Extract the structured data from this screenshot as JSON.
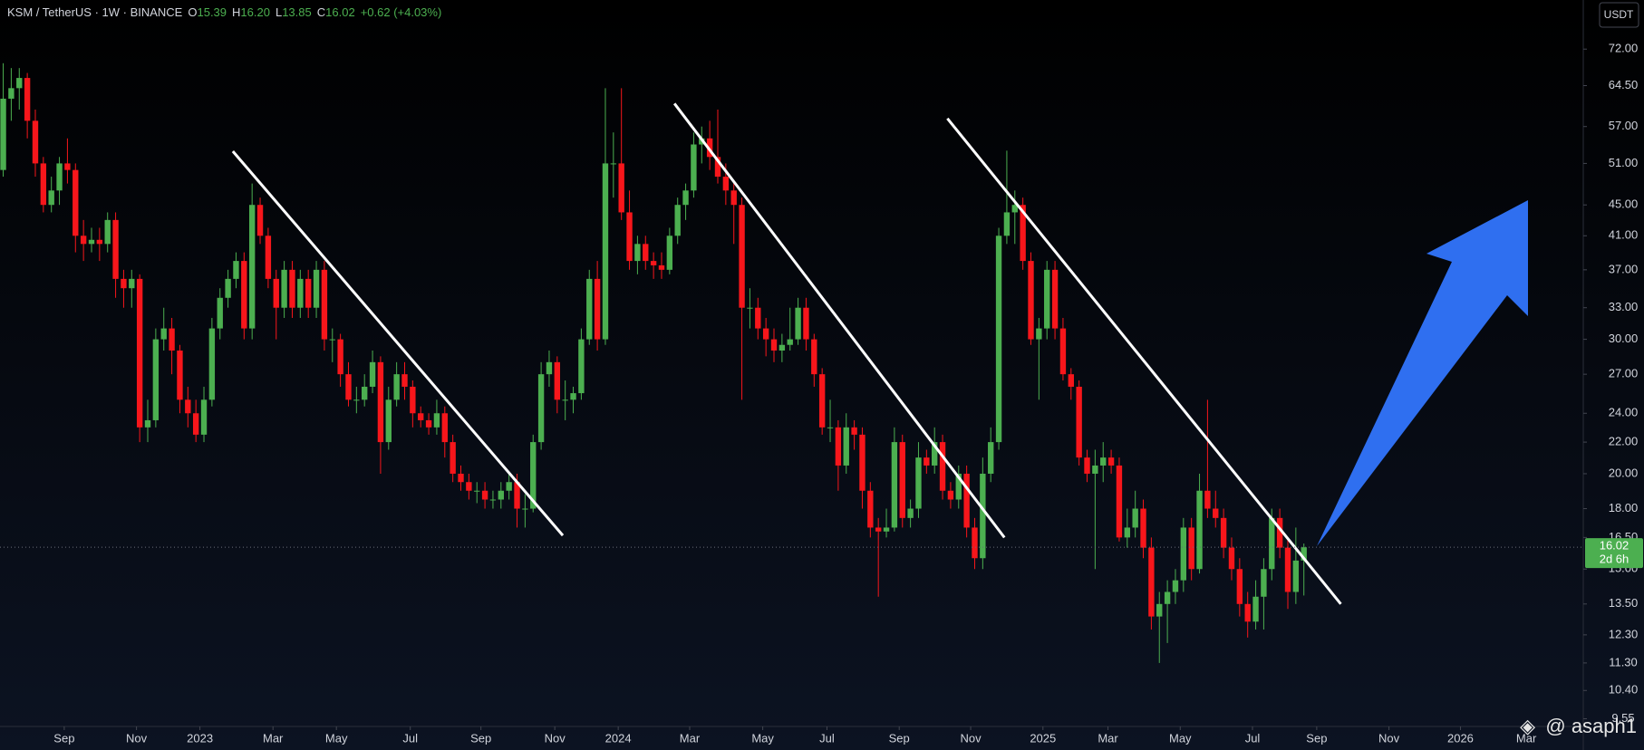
{
  "header": {
    "title": "KSM / TetherUS · 1W · BINANCE",
    "fields": [
      {
        "key": "O",
        "value": "15.39"
      },
      {
        "key": "H",
        "value": "16.20"
      },
      {
        "key": "L",
        "value": "13.85"
      },
      {
        "key": "C",
        "value": "16.02"
      }
    ],
    "change": "+0.62 (+4.03%)"
  },
  "currency": "USDT",
  "countdown": "2d 6h",
  "watermark": "@ asaph1",
  "chart_data": {
    "type": "candlestick",
    "log_scale": true,
    "up_color": "#4caf50",
    "down_color": "#f7161b",
    "trendline_color": "#ffffff",
    "xlim": [
      -0.4,
      196.8
    ],
    "ylim": [
      9.33,
      83.5
    ],
    "xticks": [
      {
        "value": 7.6,
        "label": "Sep"
      },
      {
        "value": 16.6,
        "label": "Nov"
      },
      {
        "value": 24.5,
        "label": "2023"
      },
      {
        "value": 33.6,
        "label": "Mar"
      },
      {
        "value": 41.5,
        "label": "May"
      },
      {
        "value": 50.7,
        "label": "Jul"
      },
      {
        "value": 59.5,
        "label": "Sep"
      },
      {
        "value": 68.7,
        "label": "Nov"
      },
      {
        "value": 76.6,
        "label": "2024"
      },
      {
        "value": 85.5,
        "label": "Mar"
      },
      {
        "value": 94.6,
        "label": "May"
      },
      {
        "value": 102.6,
        "label": "Jul"
      },
      {
        "value": 111.6,
        "label": "Sep"
      },
      {
        "value": 120.5,
        "label": "Nov"
      },
      {
        "value": 129.5,
        "label": "2025"
      },
      {
        "value": 137.6,
        "label": "Mar"
      },
      {
        "value": 146.6,
        "label": "May"
      },
      {
        "value": 155.6,
        "label": "Jul"
      },
      {
        "value": 163.6,
        "label": "Sep"
      },
      {
        "value": 172.6,
        "label": "Nov"
      },
      {
        "value": 181.5,
        "label": "2026"
      },
      {
        "value": 189.7,
        "label": "Mar"
      }
    ],
    "yticks": [
      {
        "value": 72,
        "label": "72.00"
      },
      {
        "value": 64.5,
        "label": "64.50"
      },
      {
        "value": 57,
        "label": "57.00"
      },
      {
        "value": 51,
        "label": "51.00"
      },
      {
        "value": 45,
        "label": "45.00"
      },
      {
        "value": 41,
        "label": "41.00"
      },
      {
        "value": 37,
        "label": "37.00"
      },
      {
        "value": 33,
        "label": "33.00"
      },
      {
        "value": 30,
        "label": "30.00"
      },
      {
        "value": 27,
        "label": "27.00"
      },
      {
        "value": 24,
        "label": "24.00"
      },
      {
        "value": 22,
        "label": "22.00"
      },
      {
        "value": 20,
        "label": "20.00"
      },
      {
        "value": 18,
        "label": "18.00"
      },
      {
        "value": 16.5,
        "label": "16.50"
      },
      {
        "value": 15,
        "label": "15.00"
      },
      {
        "value": 13.5,
        "label": "13.50"
      },
      {
        "value": 12.3,
        "label": "12.30"
      },
      {
        "value": 11.3,
        "label": "11.30"
      },
      {
        "value": 10.4,
        "label": "10.40"
      },
      {
        "value": 9.55,
        "label": "9.55"
      }
    ],
    "trendlines": [
      {
        "x": [
          28.6,
          69.7
        ],
        "y": [
          52.9,
          16.6
        ]
      },
      {
        "x": [
          83.6,
          124.7
        ],
        "y": [
          61.1,
          16.5
        ]
      },
      {
        "x": [
          117.6,
          166.6
        ],
        "y": [
          58.4,
          13.5
        ]
      }
    ],
    "candles": [
      [
        50,
        69,
        49,
        62
      ],
      [
        62,
        68,
        58,
        64
      ],
      [
        64,
        68,
        60,
        66
      ],
      [
        66,
        67,
        55,
        58
      ],
      [
        58,
        60,
        49,
        51
      ],
      [
        51,
        52,
        44,
        45
      ],
      [
        45,
        49,
        44,
        47
      ],
      [
        47,
        52,
        45,
        51
      ],
      [
        51,
        55,
        48,
        50
      ],
      [
        50,
        51,
        39,
        41
      ],
      [
        41,
        43,
        38,
        40
      ],
      [
        40,
        42,
        39,
        40.5
      ],
      [
        40.5,
        42,
        38,
        40
      ],
      [
        40,
        44,
        39,
        43
      ],
      [
        43,
        44,
        34,
        36
      ],
      [
        36,
        37,
        33,
        35
      ],
      [
        35,
        37,
        33,
        36
      ],
      [
        36,
        36.5,
        22,
        23
      ],
      [
        23,
        25,
        22,
        23.5
      ],
      [
        23.5,
        31,
        23,
        30
      ],
      [
        30,
        33,
        29,
        31
      ],
      [
        31,
        32,
        27,
        29
      ],
      [
        29,
        29.5,
        24,
        25
      ],
      [
        25,
        26,
        23,
        24
      ],
      [
        24,
        25,
        22,
        22.5
      ],
      [
        22.5,
        26,
        22,
        25
      ],
      [
        25,
        32,
        24.5,
        31
      ],
      [
        31,
        35,
        30,
        34
      ],
      [
        34,
        37,
        33,
        36
      ],
      [
        36,
        39,
        35,
        38
      ],
      [
        38,
        39,
        30,
        31
      ],
      [
        31,
        48,
        30,
        45
      ],
      [
        45,
        46,
        40,
        41
      ],
      [
        41,
        42,
        35,
        36
      ],
      [
        36,
        37,
        30,
        33
      ],
      [
        33,
        38,
        32,
        37
      ],
      [
        37,
        38,
        32,
        33
      ],
      [
        33,
        37,
        32,
        36
      ],
      [
        36,
        37,
        32,
        33
      ],
      [
        33,
        38,
        32,
        37
      ],
      [
        37,
        38,
        29,
        30
      ],
      [
        30,
        31,
        28,
        30
      ],
      [
        30,
        30.5,
        26,
        27
      ],
      [
        27,
        28,
        24.5,
        25
      ],
      [
        25,
        26,
        24,
        25
      ],
      [
        25,
        27,
        24.5,
        26
      ],
      [
        26,
        29,
        25.5,
        28
      ],
      [
        28,
        28.5,
        20,
        22
      ],
      [
        22,
        26,
        21.5,
        25
      ],
      [
        25,
        28,
        24.5,
        27
      ],
      [
        27,
        28,
        25,
        26
      ],
      [
        26,
        26.5,
        23,
        24
      ],
      [
        24,
        24.5,
        23,
        23.5
      ],
      [
        23.5,
        24,
        22.5,
        23
      ],
      [
        23,
        25,
        22.5,
        24
      ],
      [
        24,
        24.5,
        21,
        22
      ],
      [
        22,
        22.5,
        19.5,
        20
      ],
      [
        20,
        20.5,
        19,
        19.5
      ],
      [
        19.5,
        20,
        18.5,
        19
      ],
      [
        19,
        19.5,
        18.3,
        19
      ],
      [
        19,
        19.5,
        18,
        18.5
      ],
      [
        18.5,
        19,
        18,
        18.5
      ],
      [
        18.5,
        19.5,
        18,
        19
      ],
      [
        19,
        20,
        18.5,
        19.5
      ],
      [
        19.5,
        20,
        17,
        18
      ],
      [
        18,
        18.8,
        17,
        18
      ],
      [
        18,
        22.5,
        17.8,
        22
      ],
      [
        22,
        28,
        21.5,
        27
      ],
      [
        27,
        29,
        26,
        28
      ],
      [
        28,
        28.5,
        24,
        25
      ],
      [
        25,
        26.5,
        23.5,
        25
      ],
      [
        25,
        26,
        24,
        25.5
      ],
      [
        25.5,
        31,
        25,
        30
      ],
      [
        30,
        37,
        29.5,
        36
      ],
      [
        36,
        38,
        29,
        30
      ],
      [
        30,
        64,
        29.5,
        51
      ],
      [
        51,
        56,
        46,
        51
      ],
      [
        51,
        64,
        43,
        44
      ],
      [
        44,
        47,
        37,
        38
      ],
      [
        38,
        41,
        36.5,
        40
      ],
      [
        40,
        41,
        37,
        38
      ],
      [
        38,
        39,
        36,
        37.5
      ],
      [
        37.5,
        39,
        36,
        37
      ],
      [
        37,
        42,
        36.5,
        41
      ],
      [
        41,
        46,
        40,
        45
      ],
      [
        45,
        48,
        43,
        47
      ],
      [
        47,
        56,
        46,
        54
      ],
      [
        54,
        57,
        51,
        55
      ],
      [
        55,
        58,
        50,
        52
      ],
      [
        52,
        60,
        48,
        49
      ],
      [
        49,
        51,
        45,
        47
      ],
      [
        47,
        48,
        40,
        45
      ],
      [
        45,
        46,
        25,
        33
      ],
      [
        33,
        35,
        31,
        33
      ],
      [
        33,
        34,
        30,
        31
      ],
      [
        31,
        32,
        28.5,
        30
      ],
      [
        30,
        31,
        28,
        29
      ],
      [
        29,
        30.5,
        28,
        29.5
      ],
      [
        29.5,
        33,
        29,
        30
      ],
      [
        30,
        34,
        29.5,
        33
      ],
      [
        33,
        34,
        29,
        30
      ],
      [
        30,
        30.5,
        26,
        27
      ],
      [
        27,
        27.5,
        22.5,
        23
      ],
      [
        23,
        25,
        22,
        23
      ],
      [
        23,
        23.5,
        19,
        20.5
      ],
      [
        20.5,
        24,
        20,
        23
      ],
      [
        23,
        23.5,
        21.5,
        22.5
      ],
      [
        22.5,
        23,
        18,
        19
      ],
      [
        19,
        19.5,
        16.5,
        17
      ],
      [
        17,
        17.5,
        13.8,
        16.8
      ],
      [
        16.8,
        18,
        16.5,
        17
      ],
      [
        17,
        23,
        16.8,
        22
      ],
      [
        22,
        22.5,
        17,
        17.5
      ],
      [
        17.5,
        18.5,
        17,
        18
      ],
      [
        18,
        22,
        17.5,
        21
      ],
      [
        21,
        21.5,
        20,
        20.5
      ],
      [
        20.5,
        23,
        20,
        22
      ],
      [
        22,
        22.5,
        18.5,
        19
      ],
      [
        19,
        19.5,
        18,
        18.5
      ],
      [
        18.5,
        20.5,
        18,
        20
      ],
      [
        20,
        20.5,
        16.5,
        17
      ],
      [
        17,
        17.5,
        15,
        15.5
      ],
      [
        15.5,
        21,
        15,
        20
      ],
      [
        20,
        23,
        19.5,
        22
      ],
      [
        22,
        42,
        21.5,
        41
      ],
      [
        41,
        53,
        40,
        44
      ],
      [
        44,
        47,
        40,
        45
      ],
      [
        45,
        46,
        37,
        38
      ],
      [
        38,
        39,
        29.5,
        30
      ],
      [
        30,
        32,
        25,
        31
      ],
      [
        31,
        38,
        30,
        37
      ],
      [
        37,
        38,
        30,
        31
      ],
      [
        31,
        32,
        26.5,
        27
      ],
      [
        27,
        27.5,
        25,
        26
      ],
      [
        26,
        26.5,
        20.5,
        21
      ],
      [
        21,
        21.5,
        19.5,
        20
      ],
      [
        20,
        21.5,
        15,
        20.5
      ],
      [
        20.5,
        22,
        19.5,
        21
      ],
      [
        21,
        21.5,
        20,
        20.5
      ],
      [
        20.5,
        21,
        16.3,
        16.5
      ],
      [
        16.5,
        18,
        16,
        17
      ],
      [
        17,
        19,
        16.5,
        18
      ],
      [
        18,
        18.5,
        15.5,
        16
      ],
      [
        16,
        16.5,
        12.5,
        13
      ],
      [
        13,
        14,
        11.3,
        13.5
      ],
      [
        13.5,
        14.5,
        12,
        14
      ],
      [
        14,
        15,
        13.5,
        14.5
      ],
      [
        14.5,
        17.5,
        14,
        17
      ],
      [
        17,
        17.5,
        14.5,
        15
      ],
      [
        15,
        20,
        14.8,
        19
      ],
      [
        19,
        25,
        17.5,
        18
      ],
      [
        18,
        19,
        17,
        17.5
      ],
      [
        17.5,
        18,
        15.5,
        16
      ],
      [
        16,
        16.5,
        14.5,
        15
      ],
      [
        15,
        15.5,
        13,
        13.5
      ],
      [
        13.5,
        14,
        12.2,
        12.8
      ],
      [
        12.8,
        14.5,
        12.5,
        13.8
      ],
      [
        13.8,
        15.5,
        12.5,
        15
      ],
      [
        15,
        18,
        14.5,
        17.5
      ],
      [
        17.5,
        18,
        15.5,
        16
      ],
      [
        16,
        16.5,
        13.3,
        14
      ],
      [
        14,
        17,
        13.5,
        15.39
      ],
      [
        15.39,
        16.2,
        13.85,
        16.02
      ]
    ]
  }
}
